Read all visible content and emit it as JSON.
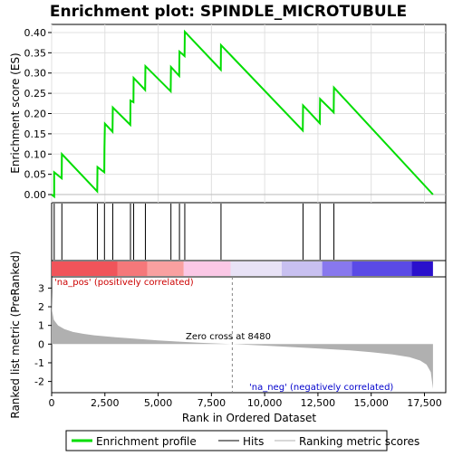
{
  "chart_data": {
    "type": "line",
    "title": "Enrichment plot: SPINDLE_MICROTUBULE",
    "xlabel": "Rank in Ordered Dataset",
    "ylabel_top": "Enrichment score (ES)",
    "ylabel_bottom": "Ranked list metric (PreRanked)",
    "x_range": [
      0,
      18500
    ],
    "x_ticks": [
      0,
      2500,
      5000,
      7500,
      10000,
      12500,
      15000,
      17500
    ],
    "x_tick_labels": [
      "0",
      "2,500",
      "5,000",
      "7,500",
      "10,000",
      "12,500",
      "15,000",
      "17,500"
    ],
    "es_range": [
      -0.02,
      0.42
    ],
    "es_ticks": [
      0.0,
      0.05,
      0.1,
      0.15,
      0.2,
      0.25,
      0.3,
      0.35,
      0.4
    ],
    "es_tick_labels": [
      "0.00",
      "0.05",
      "0.10",
      "0.15",
      "0.20",
      "0.25",
      "0.30",
      "0.35",
      "0.40"
    ],
    "metric_range": [
      -2.6,
      3.6
    ],
    "metric_ticks": [
      -2,
      -1,
      0,
      1,
      2,
      3
    ],
    "metric_tick_labels": [
      "-2",
      "-1",
      "0",
      "1",
      "2",
      "3"
    ],
    "hits": [
      120,
      480,
      2150,
      2480,
      2870,
      3700,
      3850,
      4400,
      5600,
      6000,
      6250,
      7950,
      11800,
      12600,
      13250
    ],
    "enrichment_profile": [
      [
        0,
        0.0
      ],
      [
        120,
        -0.005
      ],
      [
        121,
        0.055
      ],
      [
        470,
        0.04
      ],
      [
        480,
        0.1
      ],
      [
        2140,
        0.008
      ],
      [
        2150,
        0.068
      ],
      [
        2470,
        0.055
      ],
      [
        2480,
        0.115
      ],
      [
        2500,
        0.175
      ],
      [
        2860,
        0.155
      ],
      [
        2870,
        0.215
      ],
      [
        3690,
        0.172
      ],
      [
        3700,
        0.232
      ],
      [
        3840,
        0.228
      ],
      [
        3850,
        0.288
      ],
      [
        4390,
        0.258
      ],
      [
        4400,
        0.317
      ],
      [
        5590,
        0.255
      ],
      [
        5600,
        0.315
      ],
      [
        5990,
        0.293
      ],
      [
        6000,
        0.353
      ],
      [
        6240,
        0.342
      ],
      [
        6250,
        0.402
      ],
      [
        7940,
        0.308
      ],
      [
        7950,
        0.369
      ],
      [
        11790,
        0.158
      ],
      [
        11800,
        0.22
      ],
      [
        12590,
        0.176
      ],
      [
        12600,
        0.236
      ],
      [
        13240,
        0.203
      ],
      [
        13250,
        0.264
      ],
      [
        17900,
        0.0
      ]
    ],
    "metric_curve": [
      [
        0,
        2.8
      ],
      [
        20,
        1.8
      ],
      [
        100,
        1.3
      ],
      [
        300,
        1.0
      ],
      [
        600,
        0.8
      ],
      [
        1000,
        0.65
      ],
      [
        1500,
        0.55
      ],
      [
        2000,
        0.47
      ],
      [
        3000,
        0.37
      ],
      [
        4000,
        0.28
      ],
      [
        5000,
        0.2
      ],
      [
        6000,
        0.13
      ],
      [
        7000,
        0.07
      ],
      [
        8480,
        0.0
      ],
      [
        10000,
        -0.08
      ],
      [
        11000,
        -0.14
      ],
      [
        12000,
        -0.2
      ],
      [
        13000,
        -0.27
      ],
      [
        14000,
        -0.34
      ],
      [
        15000,
        -0.43
      ],
      [
        16000,
        -0.55
      ],
      [
        16800,
        -0.7
      ],
      [
        17300,
        -0.88
      ],
      [
        17600,
        -1.1
      ],
      [
        17800,
        -1.5
      ],
      [
        17900,
        -2.4
      ]
    ],
    "heatmap_segments": [
      {
        "from": 0,
        "to": 3100,
        "color": "#f0545a"
      },
      {
        "from": 3100,
        "to": 4500,
        "color": "#f5787a"
      },
      {
        "from": 4500,
        "to": 6200,
        "color": "#f9a0a0"
      },
      {
        "from": 6200,
        "to": 8400,
        "color": "#fbc8e6"
      },
      {
        "from": 8400,
        "to": 10800,
        "color": "#e8e2f6"
      },
      {
        "from": 10800,
        "to": 12700,
        "color": "#c8c0f0"
      },
      {
        "from": 12700,
        "to": 14100,
        "color": "#8878ee"
      },
      {
        "from": 14100,
        "to": 16900,
        "color": "#5a4ae6"
      },
      {
        "from": 16900,
        "to": 17900,
        "color": "#2a10cc"
      }
    ],
    "label_pos": "'na_pos' (positively correlated)",
    "label_neg": "'na_neg' (negatively correlated)",
    "zero_cross_label": "Zero cross at 8480",
    "zero_cross": 8480,
    "legend": [
      "Enrichment profile",
      "Hits",
      "Ranking metric scores"
    ],
    "colors": {
      "profile": "#00dd00",
      "hits": "#000000",
      "metric": "#b0b0b0",
      "pos": "#cc0000",
      "neg": "#0000cc"
    }
  }
}
